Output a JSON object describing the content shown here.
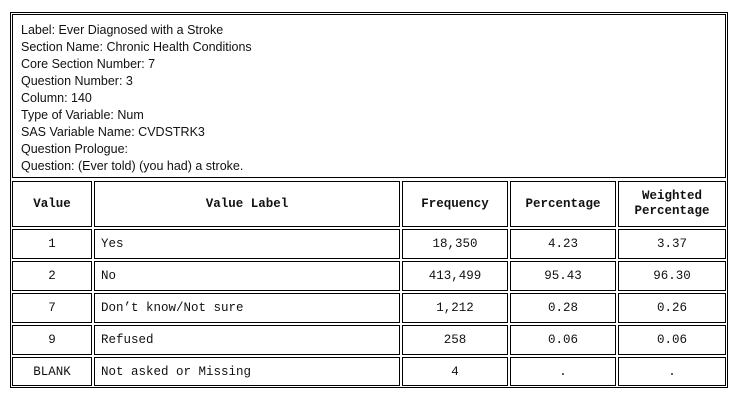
{
  "info": {
    "label": "Label: Ever Diagnosed with a Stroke",
    "section_name": "Section Name: Chronic Health Conditions",
    "core_section_number": "Core Section Number: 7",
    "question_number": "Question Number: 3",
    "column": "Column: 140",
    "type_of_variable": "Type of Variable: Num",
    "sas_variable_name": "SAS Variable Name: CVDSTRK3",
    "question_prologue": "Question Prologue:",
    "question": "Question:  (Ever told) (you had) a stroke."
  },
  "table": {
    "headers": {
      "value": "Value",
      "value_label": "Value Label",
      "frequency": "Frequency",
      "percentage": "Percentage",
      "weighted_line1": "Weighted",
      "weighted_line2": "Percentage"
    },
    "rows": [
      {
        "value": "1",
        "label": "Yes",
        "frequency": "18,350",
        "percentage": "4.23",
        "weighted": "3.37"
      },
      {
        "value": "2",
        "label": "No",
        "frequency": "413,499",
        "percentage": "95.43",
        "weighted": "96.30"
      },
      {
        "value": "7",
        "label": "Don’t know/Not sure",
        "frequency": "1,212",
        "percentage": "0.28",
        "weighted": "0.26"
      },
      {
        "value": "9",
        "label": "Refused",
        "frequency": "258",
        "percentage": "0.06",
        "weighted": "0.06"
      },
      {
        "value": "BLANK",
        "label": "Not asked or Missing",
        "frequency": "4",
        "percentage": ".",
        "weighted": "."
      }
    ]
  }
}
